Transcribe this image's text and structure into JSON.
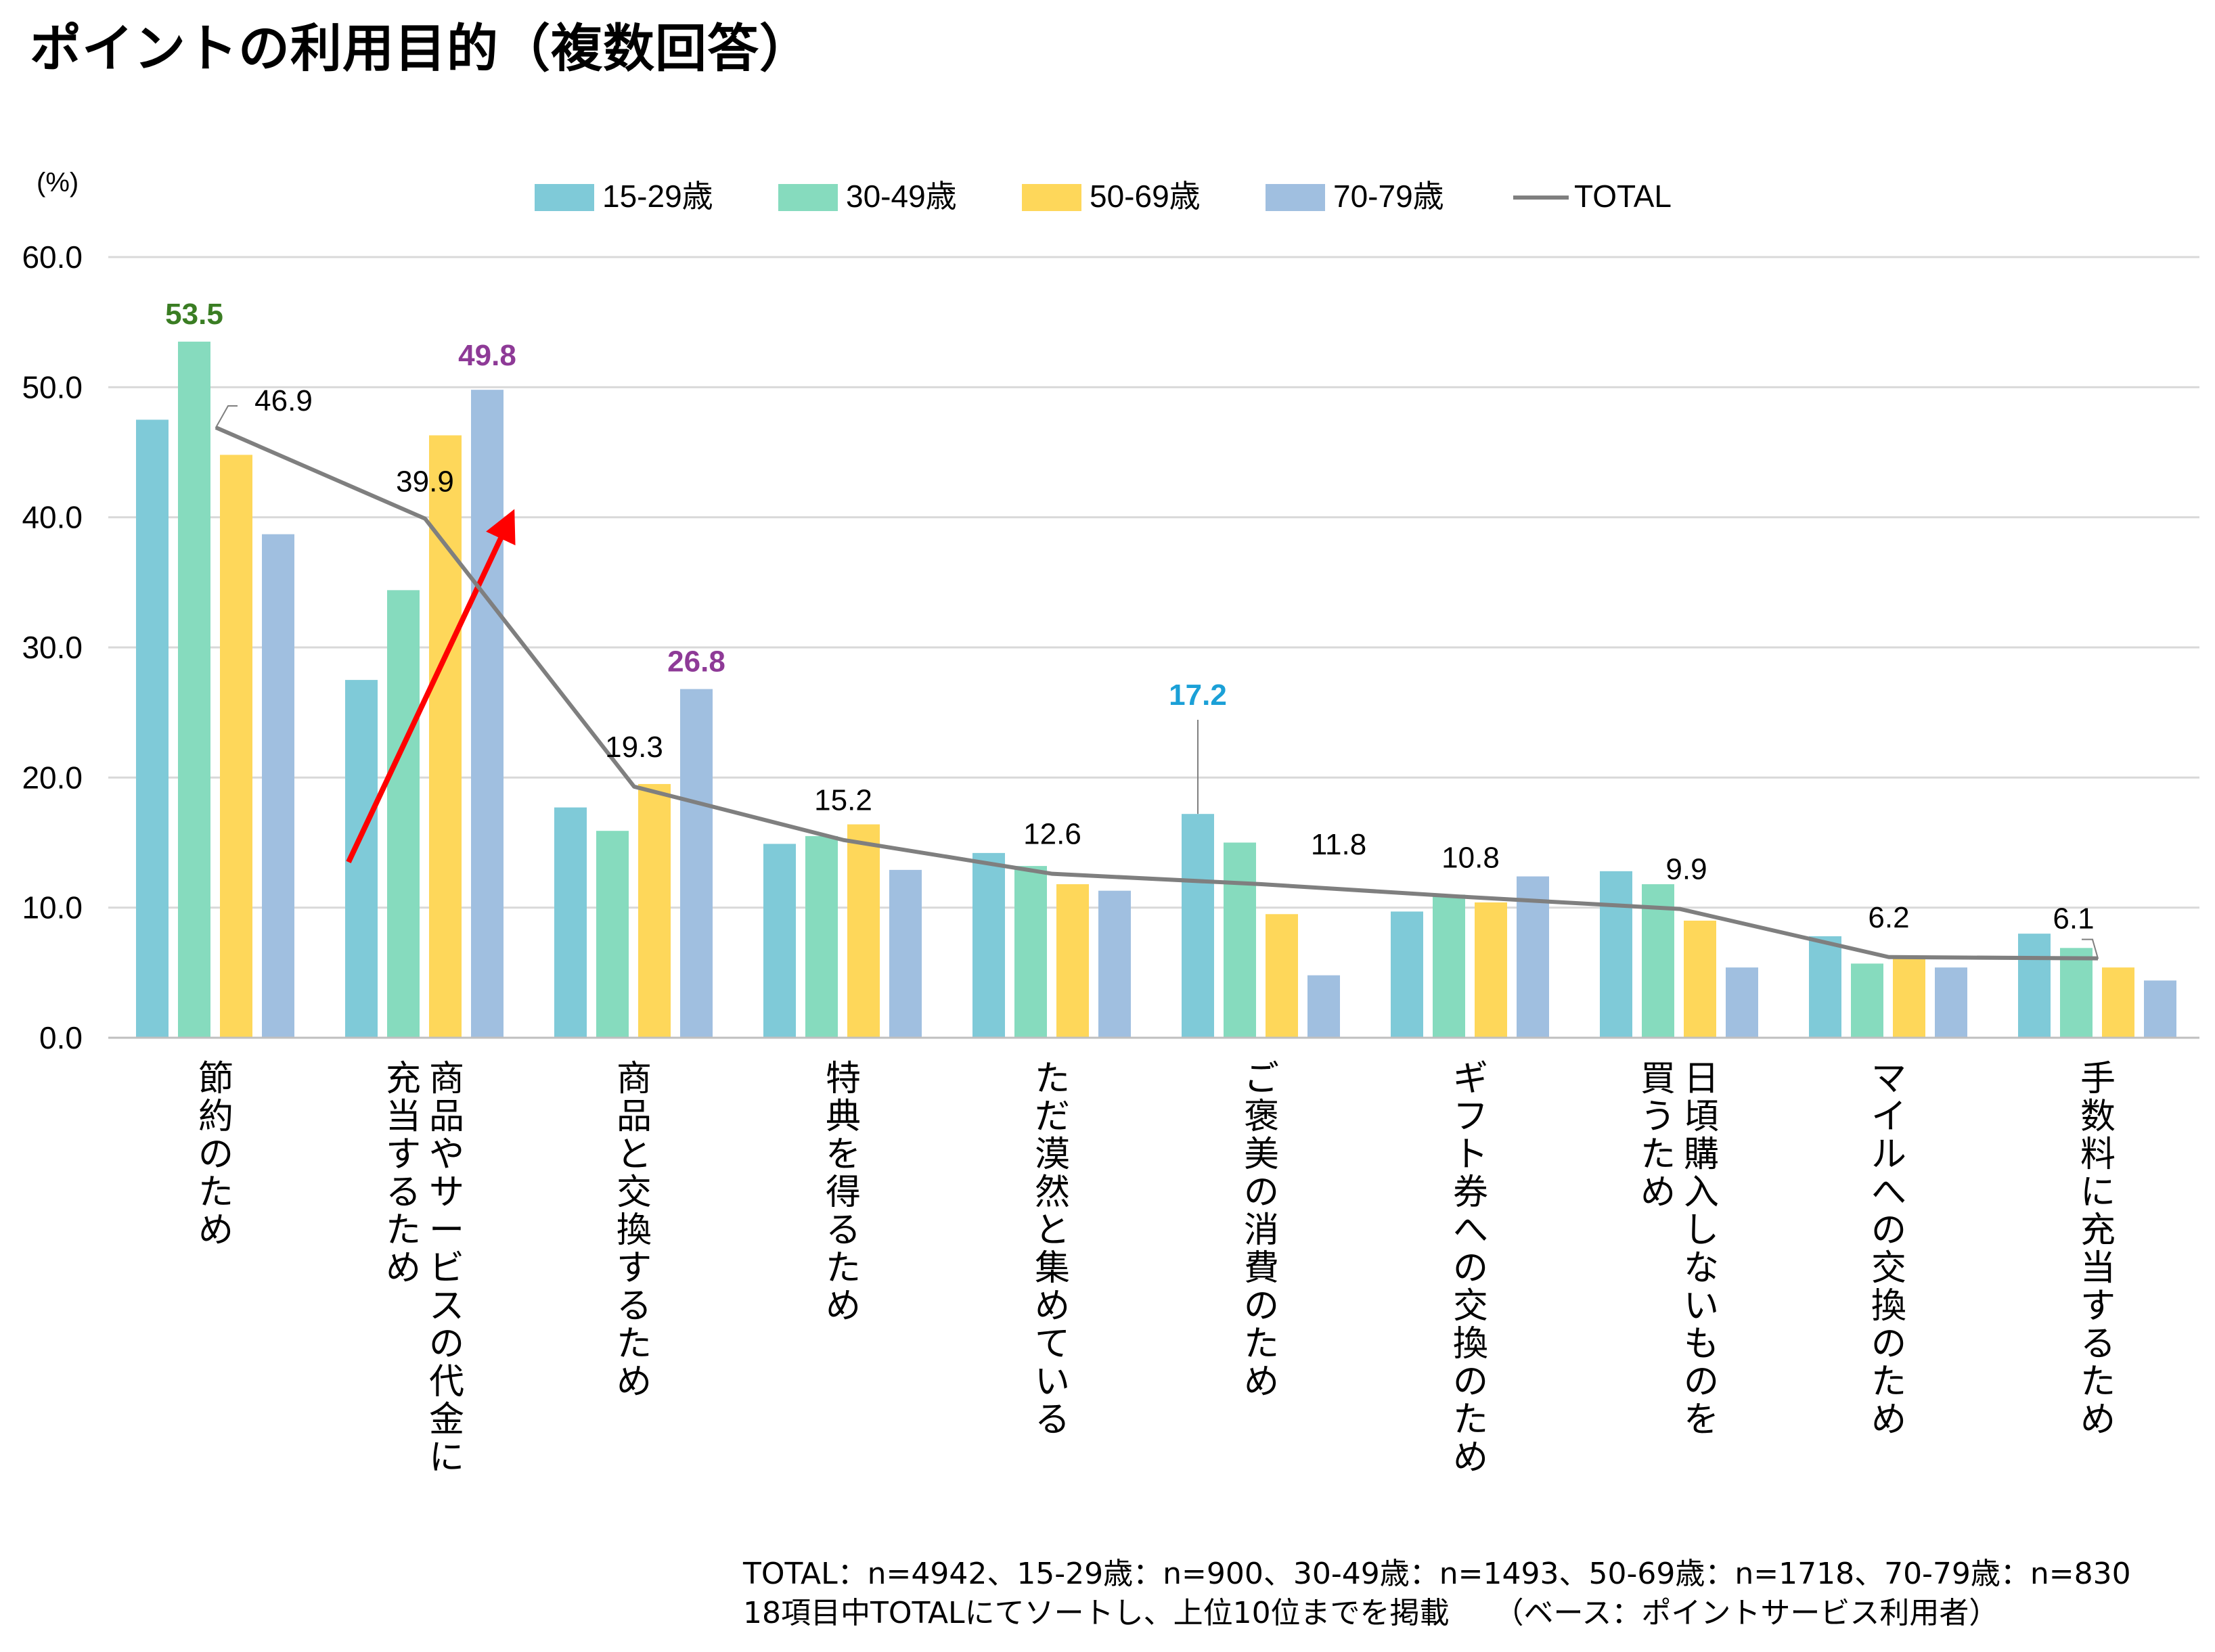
{
  "title": "ポイントの利用目的（複数回答）",
  "footnotes": [
    "TOTAL：n=4942、15-29歳：n=900、30-49歳：n=1493、50-69歳：n=1718、70-79歳：n=830",
    "18項目中TOTALにてソートし、上位10位までを掲載　　（ベース：ポイントサービス利用者）"
  ],
  "colors": {
    "15-29": "#7fcad8",
    "30-49": "#86dbbe",
    "50-69": "#fed75a",
    "70-79": "#a0bfe0",
    "total": "#7f7f7f",
    "grid": "#d9d9d9",
    "highlight_green": "#3a7d23",
    "highlight_purple": "#8e3a97",
    "highlight_blue": "#1ba0d7",
    "arrow": "#ff0000"
  },
  "chart_data": {
    "type": "bar",
    "unit_label": "(%)",
    "ylim": [
      0,
      60
    ],
    "yticks": [
      "0.0",
      "10.0",
      "20.0",
      "30.0",
      "40.0",
      "50.0",
      "60.0"
    ],
    "grid": true,
    "legend_position": "top",
    "categories": [
      "節約のため",
      "商品やサービスの代金に充当するため",
      "商品と交換するため",
      "特典を得るため",
      "ただ漠然と集めている",
      "ご褒美の消費のため",
      "ギフト券への交換のため",
      "日頃購入しないものを買うため",
      "マイルへの交換のため",
      "手数料に充当するため"
    ],
    "category_columns": [
      [
        "節約のため"
      ],
      [
        "商品やサービスの代金に",
        "充当するため"
      ],
      [
        "商品と交換するため"
      ],
      [
        "特典を得るため"
      ],
      [
        "ただ漠然と集めている"
      ],
      [
        "ご褒美の消費のため"
      ],
      [
        "ギフト券への交換のため"
      ],
      [
        "日頃購入しないものを",
        "買うため"
      ],
      [
        "マイルへの交換のため"
      ],
      [
        "手数料に充当するため"
      ]
    ],
    "series": [
      {
        "name": "15-29歳",
        "type": "bar",
        "color_key": "15-29",
        "values": [
          47.5,
          27.5,
          17.7,
          14.9,
          14.2,
          17.2,
          9.7,
          12.8,
          7.8,
          8.0
        ]
      },
      {
        "name": "30-49歳",
        "type": "bar",
        "color_key": "30-49",
        "values": [
          53.5,
          34.4,
          15.9,
          15.5,
          13.2,
          15.0,
          11.0,
          11.8,
          5.7,
          6.9
        ]
      },
      {
        "name": "50-69歳",
        "type": "bar",
        "color_key": "50-69",
        "values": [
          44.8,
          46.3,
          19.5,
          16.4,
          11.8,
          9.5,
          10.4,
          9.0,
          6.2,
          5.4
        ]
      },
      {
        "name": "70-79歳",
        "type": "bar",
        "color_key": "70-79",
        "values": [
          38.7,
          49.8,
          26.8,
          12.9,
          11.3,
          4.8,
          12.4,
          5.4,
          5.4,
          4.4
        ]
      },
      {
        "name": "TOTAL",
        "type": "line",
        "color_key": "total",
        "values": [
          46.9,
          39.9,
          19.3,
          15.2,
          12.6,
          11.8,
          10.8,
          9.9,
          6.2,
          6.1
        ]
      }
    ],
    "total_labels": [
      "46.9",
      "39.9",
      "19.3",
      "15.2",
      "12.6",
      "11.8",
      "10.8",
      "9.9",
      "6.2",
      "6.1"
    ],
    "highlights": [
      {
        "category_index": 0,
        "series_index": 1,
        "label": "53.5",
        "color_key": "highlight_green"
      },
      {
        "category_index": 1,
        "series_index": 3,
        "label": "49.8",
        "color_key": "highlight_purple"
      },
      {
        "category_index": 2,
        "series_index": 3,
        "label": "26.8",
        "color_key": "highlight_purple"
      },
      {
        "category_index": 5,
        "series_index": 0,
        "label": "17.2",
        "color_key": "highlight_blue"
      }
    ],
    "annotation_arrow": {
      "category_index": 1,
      "from_value": 13.5,
      "to_value": 39.5
    }
  }
}
